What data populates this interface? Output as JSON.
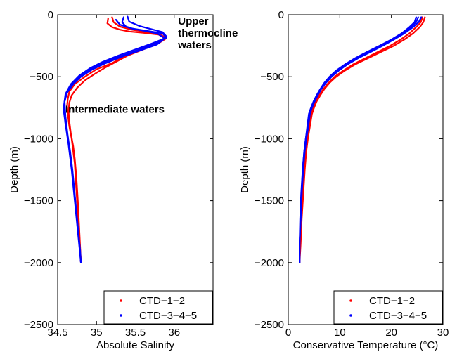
{
  "chart_data": [
    {
      "type": "line",
      "xlabel": "Absolute Salinity",
      "ylabel": "Depth (m)",
      "xlim": [
        34.5,
        36.5
      ],
      "ylim": [
        -2500,
        0
      ],
      "xticks": [
        "34.5",
        "35",
        "35.5",
        "36"
      ],
      "yticks": [
        "0",
        "−500",
        "−1000",
        "−1500",
        "−2000",
        "−2500"
      ],
      "legend_position": "bottom-right",
      "annotations": [
        {
          "lines": [
            "Upper",
            "thermocline",
            "waters"
          ],
          "x": 36.05,
          "y": -80
        },
        {
          "lines": [
            "Intermediate waters"
          ],
          "x": 34.6,
          "y": -790
        }
      ],
      "series": [
        {
          "name": "CTD−1−2",
          "color": "#ff0000",
          "profiles": [
            {
              "x": [
                35.15,
                35.14,
                35.2,
                35.3,
                35.42,
                35.6,
                35.8,
                35.88,
                35.75,
                35.55,
                35.35,
                35.2,
                35.0,
                34.85,
                34.72,
                34.65,
                34.63,
                34.62,
                34.63,
                34.65,
                34.68,
                34.7,
                34.72,
                34.74,
                34.76,
                34.78,
                34.8
              ],
              "y": [
                -30,
                -70,
                -100,
                -120,
                -135,
                -145,
                -160,
                -190,
                -230,
                -280,
                -340,
                -390,
                -440,
                -500,
                -560,
                -620,
                -680,
                -740,
                -800,
                -900,
                -1000,
                -1100,
                -1200,
                -1400,
                -1600,
                -1800,
                -2000
              ]
            },
            {
              "x": [
                35.2,
                35.22,
                35.3,
                35.45,
                35.65,
                35.82,
                35.9,
                35.8,
                35.6,
                35.4,
                35.25,
                35.1,
                34.97,
                34.85,
                34.75,
                34.68,
                34.65,
                34.64,
                34.65,
                34.67,
                34.7,
                34.72,
                34.74,
                34.76,
                34.78,
                34.8
              ],
              "y": [
                -20,
                -60,
                -95,
                -120,
                -140,
                -160,
                -190,
                -230,
                -280,
                -330,
                -380,
                -430,
                -480,
                -530,
                -590,
                -650,
                -710,
                -780,
                -860,
                -960,
                -1060,
                -1160,
                -1300,
                -1500,
                -1750,
                -2000
              ]
            }
          ]
        },
        {
          "name": "CTD−3−4−5",
          "color": "#0000ff",
          "profiles": [
            {
              "x": [
                35.35,
                35.33,
                35.38,
                35.48,
                35.62,
                35.78,
                35.88,
                35.78,
                35.55,
                35.32,
                35.12,
                34.95,
                34.8,
                34.7,
                34.62,
                34.59,
                34.58,
                34.6,
                34.63,
                34.66,
                34.69,
                34.72,
                34.75,
                34.78,
                34.8
              ],
              "y": [
                -20,
                -60,
                -95,
                -115,
                -130,
                -150,
                -190,
                -240,
                -290,
                -340,
                -390,
                -440,
                -500,
                -560,
                -630,
                -700,
                -780,
                -880,
                -980,
                -1100,
                -1250,
                -1450,
                -1650,
                -1850,
                -2000
              ]
            },
            {
              "x": [
                35.25,
                35.3,
                35.45,
                35.65,
                35.85,
                35.9,
                35.72,
                35.5,
                35.28,
                35.08,
                34.92,
                34.78,
                34.67,
                34.6,
                34.58,
                34.6,
                34.64,
                34.68,
                34.72,
                34.76,
                34.8
              ],
              "y": [
                -40,
                -80,
                -110,
                -130,
                -150,
                -185,
                -230,
                -280,
                -330,
                -380,
                -430,
                -490,
                -560,
                -640,
                -740,
                -880,
                -1050,
                -1250,
                -1500,
                -1750,
                -2000
              ]
            },
            {
              "x": [
                35.4,
                35.42,
                35.55,
                35.7,
                35.85,
                35.9,
                35.8,
                35.6,
                35.38,
                35.15,
                34.98,
                34.82,
                34.7,
                34.62,
                34.59,
                34.6,
                34.63,
                34.67,
                34.71,
                34.75,
                34.79,
                34.8
              ],
              "y": [
                -15,
                -55,
                -90,
                -115,
                -140,
                -175,
                -220,
                -270,
                -320,
                -370,
                -420,
                -480,
                -550,
                -620,
                -700,
                -820,
                -980,
                -1180,
                -1400,
                -1650,
                -1900,
                -2000
              ]
            }
          ]
        }
      ]
    },
    {
      "type": "line",
      "xlabel": "Conservative Temperature (°C)",
      "ylabel": "Depth (m)",
      "xlim": [
        0,
        30
      ],
      "ylim": [
        -2500,
        0
      ],
      "xticks": [
        "0",
        "10",
        "20",
        "30"
      ],
      "yticks": [
        "0",
        "−500",
        "−1000",
        "−1500",
        "−2000",
        "−2500"
      ],
      "legend_position": "bottom-right",
      "series": [
        {
          "name": "CTD−1−2",
          "color": "#ff0000",
          "profiles": [
            {
              "x": [
                26.5,
                26.2,
                25.5,
                24.2,
                22.5,
                20.5,
                18.0,
                15.5,
                13.0,
                11.0,
                9.3,
                8.0,
                7.0,
                6.2,
                5.5,
                5.0,
                4.6,
                4.2,
                3.8,
                3.5,
                3.2,
                2.9,
                2.6,
                2.4,
                2.2
              ],
              "y": [
                -20,
                -60,
                -100,
                -150,
                -200,
                -250,
                -300,
                -350,
                -400,
                -450,
                -500,
                -550,
                -600,
                -650,
                -700,
                -750,
                -800,
                -900,
                -1000,
                -1100,
                -1250,
                -1450,
                -1650,
                -1850,
                -2000
              ]
            },
            {
              "x": [
                26.0,
                25.7,
                24.8,
                23.5,
                21.8,
                19.8,
                17.4,
                15.0,
                12.6,
                10.7,
                9.0,
                7.8,
                6.8,
                6.0,
                5.3,
                4.8,
                4.4,
                4.0,
                3.6,
                3.3,
                3.0,
                2.7,
                2.5,
                2.3,
                2.2
              ],
              "y": [
                -20,
                -60,
                -100,
                -150,
                -200,
                -250,
                -300,
                -350,
                -400,
                -450,
                -500,
                -550,
                -600,
                -650,
                -700,
                -750,
                -800,
                -900,
                -1000,
                -1100,
                -1250,
                -1450,
                -1650,
                -1850,
                -2000
              ]
            }
          ]
        },
        {
          "name": "CTD−3−4−5",
          "color": "#0000ff",
          "profiles": [
            {
              "x": [
                25.8,
                25.3,
                24.2,
                22.5,
                20.5,
                18.3,
                16.0,
                13.6,
                11.5,
                9.8,
                8.4,
                7.3,
                6.4,
                5.7,
                5.1,
                4.6,
                4.2,
                3.9,
                3.5,
                3.2,
                2.9,
                2.6,
                2.4,
                2.2,
                2.2
              ],
              "y": [
                -20,
                -60,
                -100,
                -150,
                -200,
                -250,
                -300,
                -350,
                -400,
                -450,
                -500,
                -550,
                -600,
                -650,
                -700,
                -750,
                -800,
                -900,
                -1000,
                -1100,
                -1250,
                -1450,
                -1650,
                -1850,
                -2000
              ]
            },
            {
              "x": [
                25.2,
                24.8,
                23.8,
                22.2,
                20.2,
                18.0,
                15.7,
                13.3,
                11.2,
                9.5,
                8.2,
                7.1,
                6.3,
                5.6,
                5.0,
                4.5,
                4.1,
                3.8,
                3.4,
                3.1,
                2.8,
                2.6,
                2.4,
                2.2,
                2.2
              ],
              "y": [
                -20,
                -60,
                -100,
                -150,
                -200,
                -250,
                -300,
                -350,
                -400,
                -450,
                -500,
                -550,
                -600,
                -650,
                -700,
                -750,
                -800,
                -900,
                -1000,
                -1100,
                -1250,
                -1450,
                -1650,
                -1850,
                -2000
              ]
            },
            {
              "x": [
                24.8,
                24.5,
                23.5,
                22.0,
                20.0,
                17.7,
                15.3,
                13.0,
                11.0,
                9.3,
                8.0,
                7.0,
                6.2,
                5.5,
                4.9,
                4.4,
                4.0,
                3.7,
                3.4,
                3.1,
                2.8,
                2.5,
                2.3,
                2.2,
                2.2
              ],
              "y": [
                -20,
                -60,
                -100,
                -150,
                -200,
                -250,
                -300,
                -350,
                -400,
                -450,
                -500,
                -550,
                -600,
                -650,
                -700,
                -750,
                -800,
                -900,
                -1000,
                -1100,
                -1250,
                -1450,
                -1650,
                -1850,
                -2000
              ]
            }
          ]
        }
      ]
    }
  ]
}
